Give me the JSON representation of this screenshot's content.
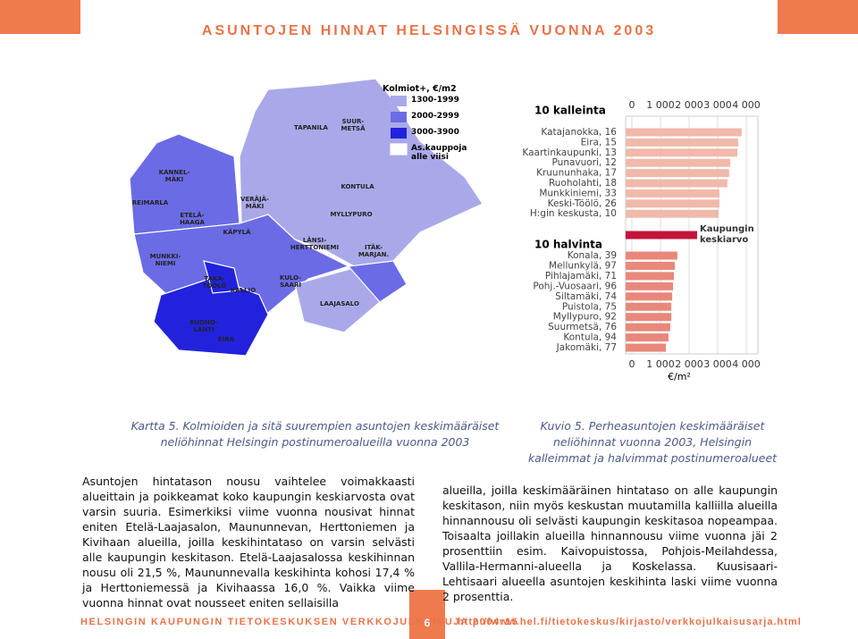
{
  "header": {
    "title": "ASUNTOJEN HINNAT HELSINGISSÄ VUONNA 2003"
  },
  "map": {
    "legend": {
      "title": "Kolmiot+, €/m2",
      "items": [
        {
          "label": "1300-1999",
          "color": "#a9a9ea"
        },
        {
          "label": "2000-2999",
          "color": "#6b6be6"
        },
        {
          "label": "3000-3900",
          "color": "#2222dd"
        },
        {
          "label": "As.kauppoja alle viisi",
          "color": "#ffffff"
        }
      ]
    },
    "districts": [
      "TAPANILA",
      "SUUR-\nMETSÄ",
      "KONTULA",
      "MYLLYPURO",
      "KANNEL-\nMÄKI",
      "REIMARLA",
      "ETELÄ-\nHAAGA",
      "VERÄJÄ-\nMÄKI",
      "KÄPYLÄ",
      "LÄNSI-\nHERTTONIEMI",
      "ITÄK-\nMARJAN.",
      "MUNKKI-\nNIEMI",
      "TAKA-\nTÖÖLÖ",
      "KULO-\nSAARI",
      "KALLIO",
      "LAAJASALO",
      "RUOHO-\nLAHTI",
      "EIRA"
    ]
  },
  "chart_data": {
    "type": "bar",
    "orientation": "horizontal",
    "group_labels": [
      "10 kalleinta",
      "10 halvinta"
    ],
    "categories": [
      "Katajanokka, 16",
      "Eira, 15",
      "Kaartinkaupunki, 13",
      "Punavuori, 12",
      "Kruununhaka, 17",
      "Ruoholahti, 18",
      "Munkkiniemi, 33",
      "Keski-Töölö, 26",
      "H:gin keskusta, 10",
      "Kaupungin keskiarvo",
      "Konala, 39",
      "Mellunkylä, 97",
      "Pihlajamäki, 71",
      "Pohj.-Vuosaari, 96",
      "Siltamäki, 74",
      "Puistola, 75",
      "Myllypuro, 92",
      "Suurmetsä, 76",
      "Kontula, 94",
      "Jakomäki, 77"
    ],
    "values": [
      3840,
      3720,
      3690,
      3440,
      3400,
      3340,
      3060,
      3060,
      3030,
      2280,
      1590,
      1500,
      1470,
      1440,
      1410,
      1380,
      1380,
      1340,
      1280,
      1190
    ],
    "colors": [
      "#f0b9aa",
      "#f0b9aa",
      "#f0b9aa",
      "#f0b9aa",
      "#f0b9aa",
      "#f0b9aa",
      "#f0b9aa",
      "#f0b9aa",
      "#f0b9aa",
      "#c3143c",
      "#e8887a",
      "#e8887a",
      "#e8887a",
      "#e8887a",
      "#e8887a",
      "#e8887a",
      "#e8887a",
      "#e8887a",
      "#e8887a",
      "#e8887a"
    ],
    "xlim": [
      0,
      4000
    ],
    "xticks": [
      0,
      {
        "value": 1000,
        "label": "1 000"
      },
      {
        "value": 2000,
        "label": "2 000"
      },
      {
        "value": 3000,
        "label": "3 000"
      },
      {
        "value": 4000,
        "label": "4 000"
      }
    ],
    "xlabel": "€/m²",
    "grid": true
  },
  "captions": {
    "map": "Kartta 5. Kolmioiden ja sitä suurempien asuntojen keskimääräiset neliöhinnat Helsingin postinumeroalueilla vuonna 2003",
    "chart": "Kuvio 5. Perheasuntojen keskimääräiset neliöhinnat vuonna 2003, Helsingin kalleimmat ja halvimmat postinumeroalueet"
  },
  "body": {
    "left": "Asuntojen hintatason nousu vaihtelee voimakkaasti alueittain ja poikkeamat koko kaupungin keskiarvosta ovat varsin suuria. Esimerkiksi viime vuonna nousivat hinnat eniten Etelä-Laajasalon, Maununnevan, Herttoniemen ja Kivihaan alueilla, joilla keskihintataso on varsin selvästi alle kaupungin keskitason. Etelä-Laajasalossa keskihinnan nousu oli 21,5 %, Maununnevalla keskihinta kohosi 17,4 % ja Herttoniemessä ja Kivihaassa 16,0 %. Vaikka viime vuonna hinnat ovat nousseet eniten sellaisilla",
    "right": "alueilla, joilla keskimääräinen hintataso on alle kaupungin keskitason, niin myös keskustan muutamilla kalliilla alueilla hinnannousu oli selvästi kaupungin keskitasoa nopeampaa. Toisaalta joillakin alueilla hinnannousu viime vuonna jäi 2 prosenttiin esim. Kaivopuistossa, Pohjois-Meilahdessa, Vallila-Hermanni-alueella ja Koskelassa. Kuusisaari-Lehtisaari alueella asuntojen keskihinta laski viime vuonna 2 prosenttia."
  },
  "footer": {
    "series": "HELSINGIN KAUPUNGIN TIETOKESKUKSEN VERKKOJULKAISUJA 2004:15",
    "page": "6",
    "url": "http://www.hel.fi/tietokeskus/kirjasto/verkkojulkaisusarja.html"
  }
}
